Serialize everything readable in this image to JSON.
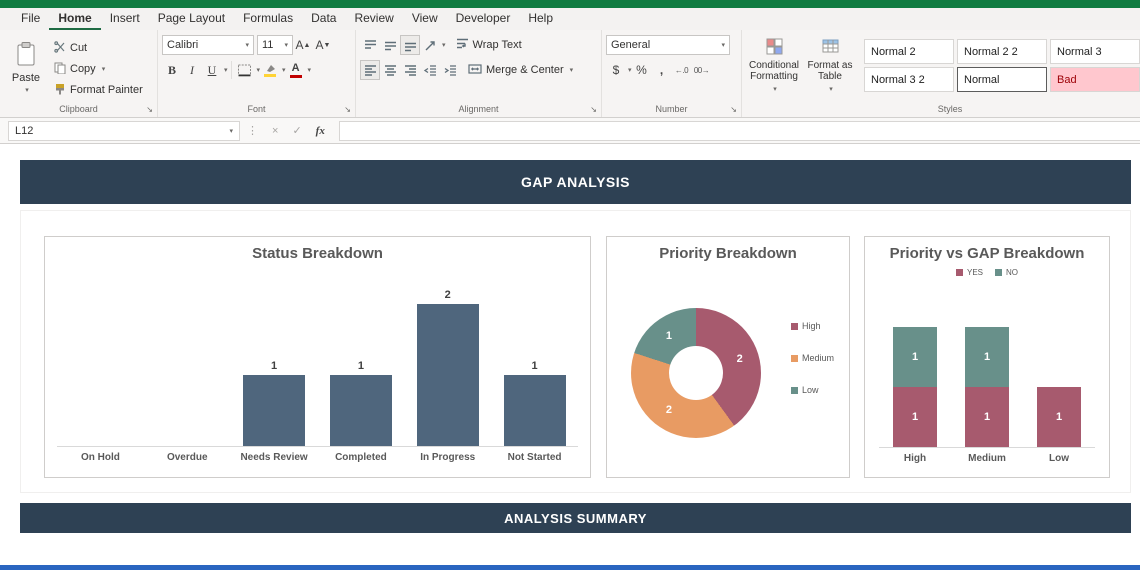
{
  "window": {
    "app_accent": "#107c41",
    "taskbar_color": "#2a65c0"
  },
  "menu": {
    "tabs": [
      "File",
      "Home",
      "Insert",
      "Page Layout",
      "Formulas",
      "Data",
      "Review",
      "View",
      "Developer",
      "Help"
    ],
    "active_tab": "Home"
  },
  "ribbon": {
    "clipboard": {
      "group_label": "Clipboard",
      "paste_label": "Paste",
      "cut_label": "Cut",
      "copy_label": "Copy",
      "format_painter_label": "Format Painter"
    },
    "font": {
      "group_label": "Font",
      "font_name": "Calibri",
      "font_size": "11",
      "bold": "B",
      "italic": "I",
      "underline": "U"
    },
    "alignment": {
      "group_label": "Alignment",
      "wrap_text_label": "Wrap Text",
      "merge_center_label": "Merge & Center"
    },
    "number": {
      "group_label": "Number",
      "format_value": "General",
      "currency": "$",
      "percent": "%",
      "comma": ",",
      "increase_decimal": "←.0",
      "decrease_decimal": "00→"
    },
    "styles": {
      "group_label": "Styles",
      "conditional_formatting_label": "Conditional Formatting",
      "format_as_table_label": "Format as Table",
      "cells": [
        "Normal 2",
        "Normal 2 2",
        "Normal 3",
        "Normal 3 2",
        "Normal",
        "Bad"
      ],
      "selected_cell": "Normal"
    }
  },
  "formula_bar": {
    "name_box_value": "L12",
    "fx_label": "fx"
  },
  "icons": {
    "chevron_down": "▾",
    "dialog_launcher": "↘",
    "cancel": "×",
    "enter": "✓",
    "more_dots": "⋮",
    "gallery_up": "▲",
    "gallery_down": "▼",
    "gallery_more": "▼"
  },
  "sheet": {
    "title_band": "GAP ANALYSIS",
    "summary_band": "ANALYSIS SUMMARY",
    "band_color": "#2e4154"
  },
  "chart_data": [
    {
      "type": "bar",
      "title": "Status Breakdown",
      "categories": [
        "On Hold",
        "Overdue",
        "Needs Review",
        "Completed",
        "In Progress",
        "Not Started"
      ],
      "values": [
        0,
        0,
        1,
        1,
        2,
        1
      ],
      "ylim": [
        0,
        2
      ],
      "bar_color": "#4f667d",
      "grid": false,
      "data_labels": true
    },
    {
      "type": "pie",
      "subtype": "donut",
      "title": "Priority Breakdown",
      "legend_position": "right",
      "segments": [
        {
          "name": "High",
          "value": 2,
          "color": "#a75a6e"
        },
        {
          "name": "Medium",
          "value": 2,
          "color": "#e89b63"
        },
        {
          "name": "Low",
          "value": 1,
          "color": "#68908a"
        }
      ]
    },
    {
      "type": "bar",
      "subtype": "stacked",
      "title": "Priority vs GAP Breakdown",
      "legend_position": "top",
      "categories": [
        "High",
        "Medium",
        "Low"
      ],
      "series": [
        {
          "name": "YES",
          "color": "#a75a6e",
          "values": [
            1,
            1,
            1
          ]
        },
        {
          "name": "NO",
          "color": "#68908a",
          "values": [
            1,
            1,
            0
          ]
        }
      ]
    }
  ]
}
